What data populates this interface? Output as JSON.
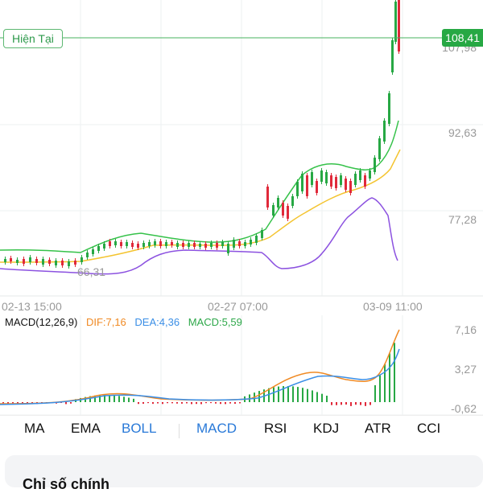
{
  "current_price": {
    "label": "Hiện Tại",
    "value": "108,41"
  },
  "price_axis": {
    "ticks": [
      "107,98",
      "92,63",
      "77,28"
    ],
    "low_label": "66,31"
  },
  "time_axis": {
    "ticks": [
      "02-13 15:00",
      "02-27 07:00",
      "03-09 11:00"
    ]
  },
  "macd_legend": {
    "name": "MACD(12,26,9)",
    "dif": "DIF:7,16",
    "dea": "DEA:4,36",
    "macd": "MACD:5,59"
  },
  "macd_axis": {
    "ticks": [
      "7,16",
      "3,27",
      "-0,62"
    ]
  },
  "indicator_tabs": [
    "MA",
    "EMA",
    "BOLL",
    "MACD",
    "RSI",
    "KDJ",
    "ATR",
    "CCI"
  ],
  "active_tabs": [
    "BOLL",
    "MACD"
  ],
  "bottom_card": {
    "partial_title": "Chỉ số chính"
  },
  "colors": {
    "up": "#27a844",
    "down": "#e0293a",
    "boll_upper": "#36c24a",
    "boll_mid": "#f4c430",
    "boll_lower": "#8c52e0",
    "dif": "#f08a24",
    "dea": "#3a8ee6",
    "active_tab": "#2979d8"
  }
}
